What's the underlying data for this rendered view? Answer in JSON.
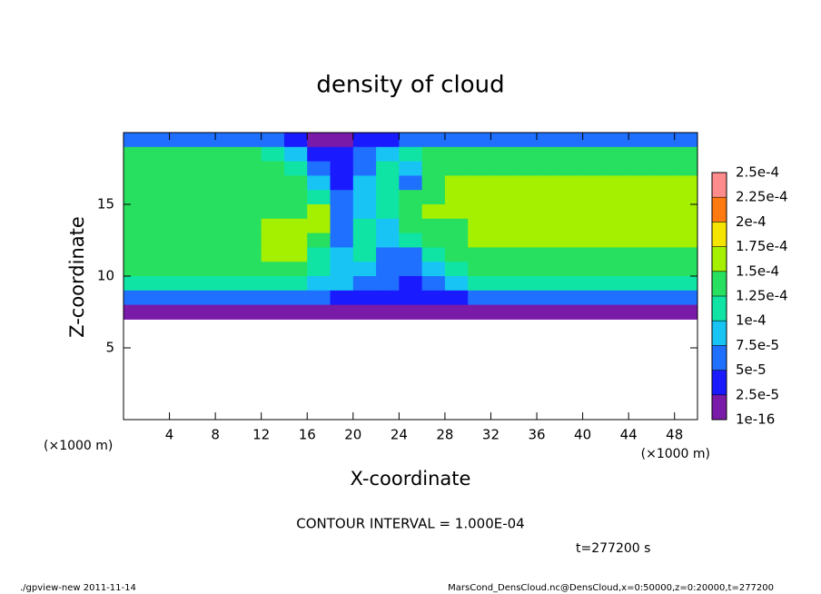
{
  "chart_data": {
    "type": "heatmap",
    "title": "density of cloud",
    "xlabel": "X-coordinate",
    "ylabel": "Z-coordinate",
    "x_unit_label": "(×1000 m)",
    "y_unit_label": "(×1000 m)",
    "contour_text": "CONTOUR INTERVAL = 1.000E-04",
    "time_text": "t=277200 s",
    "footer_left": "./gpview-new  2011-11-14",
    "footer_right": "MarsCond_DensCloud.nc@DensCloud,x=0:50000,z=0:20000,t=277200",
    "xlim": [
      0,
      50
    ],
    "ylim": [
      0,
      20
    ],
    "xticks": [
      4,
      8,
      12,
      16,
      20,
      24,
      28,
      32,
      36,
      40,
      44,
      48
    ],
    "yticks": [
      5,
      10,
      15
    ],
    "x": [
      1,
      3,
      5,
      7,
      9,
      11,
      13,
      15,
      17,
      19,
      21,
      23,
      25,
      27,
      29,
      31,
      33,
      35,
      37,
      39,
      41,
      43,
      45,
      47,
      49
    ],
    "y": [
      19.5,
      18.5,
      17.5,
      16.5,
      15.5,
      14.5,
      13.5,
      12.5,
      11.5,
      10.5,
      9.5,
      8.5,
      7.5
    ],
    "z": [
      [
        6e-05,
        6e-05,
        6e-05,
        6e-05,
        6e-05,
        6e-05,
        6e-05,
        3e-05,
        2e-05,
        2e-05,
        3e-05,
        4e-05,
        7e-05,
        7e-05,
        7e-05,
        7e-05,
        7e-05,
        7e-05,
        7e-05,
        7e-05,
        7e-05,
        7e-05,
        7e-05,
        7e-05,
        7e-05
      ],
      [
        0.00013,
        0.00013,
        0.00013,
        0.00013,
        0.00013,
        0.00013,
        0.00011,
        8e-05,
        4e-05,
        3e-05,
        5e-05,
        8e-05,
        0.00011,
        0.00013,
        0.00013,
        0.00013,
        0.00013,
        0.00013,
        0.00013,
        0.00013,
        0.00013,
        0.00013,
        0.00013,
        0.00013,
        0.00013
      ],
      [
        0.00014,
        0.00014,
        0.00014,
        0.00014,
        0.00014,
        0.00014,
        0.00013,
        0.00011,
        6e-05,
        3e-05,
        5e-05,
        0.00012,
        9e-05,
        0.00013,
        0.000145,
        0.000145,
        0.000145,
        0.000145,
        0.000145,
        0.000145,
        0.000145,
        0.000145,
        0.000145,
        0.000145,
        0.000145
      ],
      [
        0.00014,
        0.00014,
        0.00014,
        0.00014,
        0.00014,
        0.00014,
        0.00014,
        0.00013,
        8e-05,
        4e-05,
        9e-05,
        0.00011,
        7e-05,
        0.00013,
        0.00015,
        0.00015,
        0.00015,
        0.00015,
        0.00015,
        0.00015,
        0.00015,
        0.00015,
        0.00015,
        0.00015,
        0.00015
      ],
      [
        0.000145,
        0.000145,
        0.000145,
        0.000145,
        0.000145,
        0.000145,
        0.000145,
        0.000145,
        0.00011,
        5e-05,
        8e-05,
        0.00011,
        0.00013,
        0.000145,
        0.00015,
        0.00015,
        0.00015,
        0.00015,
        0.00015,
        0.00015,
        0.00015,
        0.00015,
        0.00015,
        0.00015,
        0.00015
      ],
      [
        0.000145,
        0.000145,
        0.000145,
        0.000145,
        0.000145,
        0.000145,
        0.000145,
        0.000145,
        0.000155,
        6e-05,
        9e-05,
        0.00012,
        0.00014,
        0.00015,
        0.00015,
        0.00015,
        0.00015,
        0.00015,
        0.00015,
        0.00015,
        0.00015,
        0.00015,
        0.00015,
        0.00015,
        0.00015
      ],
      [
        0.000145,
        0.000145,
        0.000145,
        0.000145,
        0.000145,
        0.000145,
        0.00015,
        0.000155,
        0.000155,
        6e-05,
        0.0001,
        9e-05,
        0.00013,
        0.00014,
        0.000145,
        0.00015,
        0.00015,
        0.00015,
        0.00015,
        0.00015,
        0.00015,
        0.00015,
        0.00015,
        0.00015,
        0.00015
      ],
      [
        0.000145,
        0.000145,
        0.000145,
        0.000145,
        0.000145,
        0.000145,
        0.000155,
        0.000155,
        0.00013,
        7e-05,
        0.00011,
        8e-05,
        0.00012,
        0.00013,
        0.00014,
        0.00015,
        0.00015,
        0.00015,
        0.00015,
        0.00015,
        0.00015,
        0.00015,
        0.00015,
        0.00015,
        0.00015
      ],
      [
        0.000145,
        0.000145,
        0.000145,
        0.000145,
        0.000145,
        0.000145,
        0.000155,
        0.000155,
        0.00012,
        8e-05,
        0.0001,
        7e-05,
        6e-05,
        0.00011,
        0.00013,
        0.000145,
        0.000145,
        0.000145,
        0.000145,
        0.000145,
        0.000145,
        0.000145,
        0.000145,
        0.000145,
        0.000145
      ],
      [
        0.000135,
        0.000135,
        0.000135,
        0.000135,
        0.000135,
        0.000135,
        0.000135,
        0.00014,
        0.00011,
        8e-05,
        9e-05,
        7e-05,
        5e-05,
        9e-05,
        0.00012,
        0.000135,
        0.000135,
        0.000135,
        0.000135,
        0.000135,
        0.000135,
        0.000135,
        0.000135,
        0.000135,
        0.000135
      ],
      [
        0.000105,
        0.000105,
        0.000105,
        0.000105,
        0.000105,
        0.000105,
        0.000105,
        0.000105,
        9e-05,
        8e-05,
        6e-05,
        5e-05,
        4e-05,
        7e-05,
        9e-05,
        0.0001,
        0.0001,
        0.0001,
        0.0001,
        0.0001,
        0.0001,
        0.0001,
        0.0001,
        0.0001,
        0.0001
      ],
      [
        6e-05,
        6e-05,
        6e-05,
        6e-05,
        6e-05,
        6e-05,
        6e-05,
        6e-05,
        6e-05,
        4e-05,
        4e-05,
        4e-05,
        4e-05,
        4e-05,
        4e-05,
        6e-05,
        6e-05,
        6e-05,
        6e-05,
        6e-05,
        6e-05,
        6e-05,
        6e-05,
        6e-05,
        6e-05
      ],
      [
        2e-05,
        2e-05,
        2e-05,
        2e-05,
        2e-05,
        2e-05,
        2e-05,
        2e-05,
        2e-05,
        1e-05,
        1e-05,
        1e-05,
        1e-05,
        1e-05,
        1e-05,
        2e-05,
        2e-05,
        2e-05,
        2e-05,
        2e-05,
        2e-05,
        2e-05,
        2e-05,
        2e-05,
        2e-05
      ]
    ],
    "colorbar_ticks": [
      1e-16,
      {
        "value": 2.5e-05,
        "label": "2.5e-5"
      },
      {
        "value": 5e-05,
        "label": "5e-5"
      },
      {
        "value": 7.5e-05,
        "label": "7.5e-5"
      },
      {
        "value": 0.0001,
        "label": "1e-4"
      },
      {
        "value": 0.000125,
        "label": "1.25e-4"
      },
      {
        "value": 0.00015,
        "label": "1.5e-4"
      },
      {
        "value": 0.000175,
        "label": "1.75e-4"
      },
      {
        "value": 0.0002,
        "label": "2e-4"
      },
      {
        "value": 0.000225,
        "label": "2.25e-4"
      },
      {
        "value": 0.00025,
        "label": "2.5e-4"
      }
    ],
    "colors": [
      "#7a1aa8",
      "#1a1aff",
      "#1f70ff",
      "#18c4f4",
      "#10e4a4",
      "#28e060",
      "#a4f000",
      "#f4e400",
      "#ff7a10",
      "#ff8c8c"
    ]
  }
}
